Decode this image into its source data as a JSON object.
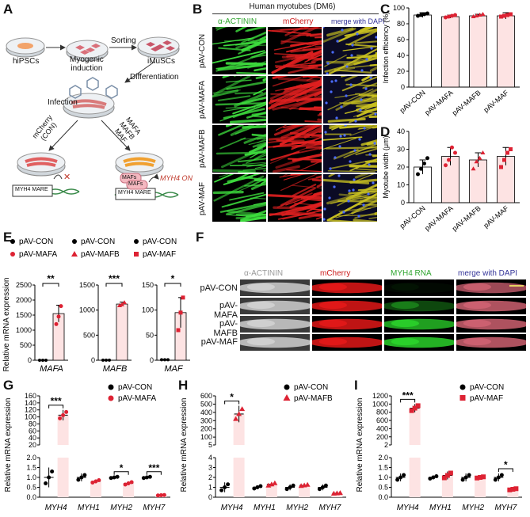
{
  "panels": {
    "A": {
      "letter": "A",
      "labels": {
        "hipsc": "hiPSCs",
        "myogenic": "Myogenic\ninduction",
        "sorting": "Sorting",
        "imuscs": "iMuSCs",
        "differentiation": "Differentiation",
        "infection": "Infection",
        "mcherry_con": "mCherry\n(CON)",
        "mafs_list": "MAFA\nMAFB\nMAF",
        "myh4_mare": "MYH4 MARE",
        "mafs": "MAFs",
        "myh4_on": "MYH4 ON"
      }
    },
    "B": {
      "letter": "B",
      "title": "Human myotubes (DM6)",
      "columns": [
        "α-ACTININ",
        "mCherry",
        "merge with DAPI"
      ],
      "column_colors": [
        "#2fa52f",
        "#cc1a1a",
        "#333399"
      ],
      "rows": [
        "pAV-CON",
        "pAV-MAFA",
        "pAV-MAFB",
        "pAV-MAF"
      ]
    },
    "C": {
      "letter": "C",
      "chart_data": {
        "type": "bar",
        "categories": [
          "pAV-CON",
          "pAV-MAFA",
          "pAV-MAFB",
          "pAV-MAF"
        ],
        "values": [
          91,
          89,
          90,
          90
        ],
        "errors": [
          3,
          2,
          2,
          4
        ],
        "ylabel": "Infection efficiency (%)",
        "ylim": [
          0,
          100
        ],
        "yticks": [
          0,
          20,
          40,
          60,
          80,
          100
        ]
      }
    },
    "D": {
      "letter": "D",
      "chart_data": {
        "type": "bar",
        "categories": [
          "pAV-CON",
          "pAV-MAFA",
          "pAV-MAFB",
          "pAV-MAF"
        ],
        "values": [
          20,
          26,
          24,
          26
        ],
        "errors": [
          4,
          5,
          4,
          5
        ],
        "points": [
          [
            16,
            19,
            22,
            25
          ],
          [
            21,
            24,
            31,
            28
          ],
          [
            19,
            23,
            25,
            28
          ],
          [
            20,
            24,
            28,
            30
          ]
        ],
        "ylabel": "Myotube width (μm)",
        "ylim": [
          0,
          40
        ],
        "yticks": [
          0,
          10,
          20,
          30,
          40
        ]
      }
    },
    "E": {
      "letter": "E",
      "ylabel": "Relative mRNA expression",
      "legends": [
        [
          "pAV-CON",
          "pAV-MAFA"
        ],
        [
          "pAV-CON",
          "pAV-MAFB"
        ],
        [
          "pAV-CON",
          "pAV-MAF"
        ]
      ],
      "chart_data": [
        {
          "type": "bar",
          "gene": "MAFA",
          "categories": [
            "pAV-CON",
            "pAV-MAFA"
          ],
          "values": [
            1,
            1550
          ],
          "errors": [
            0,
            280
          ],
          "points": [
            [
              1,
              1,
              1
            ],
            [
              1200,
              1450,
              1800
            ]
          ],
          "ylim": [
            0,
            2500
          ],
          "yticks": [
            0,
            500,
            1000,
            1500,
            2000,
            2500
          ],
          "sig": "**"
        },
        {
          "type": "bar",
          "gene": "MAFB",
          "categories": [
            "pAV-CON",
            "pAV-MAFB"
          ],
          "values": [
            1,
            1120
          ],
          "errors": [
            0,
            40
          ],
          "points": [
            [
              1,
              1,
              1
            ],
            [
              1090,
              1110,
              1150
            ]
          ],
          "ylim": [
            0,
            1500
          ],
          "yticks": [
            0,
            500,
            1000,
            1500
          ],
          "sig": "***"
        },
        {
          "type": "bar",
          "gene": "MAF",
          "categories": [
            "pAV-CON",
            "pAV-MAF"
          ],
          "values": [
            1,
            95
          ],
          "errors": [
            0,
            30
          ],
          "points": [
            [
              1,
              1,
              1
            ],
            [
              60,
              95,
              125
            ]
          ],
          "ylim": [
            0,
            150
          ],
          "yticks": [
            0,
            50,
            100,
            150
          ],
          "sig": "*"
        }
      ]
    },
    "F": {
      "letter": "F",
      "columns": [
        "α-ACTININ",
        "mCherry",
        "MYH4 RNA",
        "merge with DAPI"
      ],
      "rows": [
        "pAV-CON",
        "pAV-MAFA",
        "pAV-MAFB",
        "pAV-MAF"
      ]
    },
    "G": {
      "letter": "G",
      "legend": [
        "pAV-CON",
        "pAV-MAFA"
      ],
      "chart_data": {
        "type": "bar",
        "categories": [
          "MYH4",
          "MYH1",
          "MYH2",
          "MYH7"
        ],
        "series": [
          {
            "name": "pAV-CON",
            "values": [
              1,
              1,
              1,
              1
            ],
            "errors": [
              0.5,
              0.2,
              0.05,
              0.05
            ]
          },
          {
            "name": "pAV-MAFA",
            "values": [
              105,
              0.8,
              0.7,
              0.1
            ],
            "errors": [
              15,
              0.1,
              0.1,
              0.02
            ]
          }
        ],
        "ylabel": "Relative mRNA expression",
        "yticks_upper": [
          20,
          40,
          60,
          80,
          100,
          120,
          140,
          160
        ],
        "yticks_lower": [
          0,
          0.5,
          1.0,
          1.5,
          2.0
        ],
        "sig": [
          "***",
          "",
          "*",
          "***"
        ]
      }
    },
    "H": {
      "letter": "H",
      "legend": [
        "pAV-CON",
        "pAV-MAFB"
      ],
      "chart_data": {
        "type": "bar",
        "categories": [
          "MYH4",
          "MYH1",
          "MYH2",
          "MYH7"
        ],
        "series": [
          {
            "name": "pAV-CON",
            "values": [
              1,
              1,
              1,
              1
            ],
            "errors": [
              0.5,
              0.2,
              0.3,
              0.3
            ]
          },
          {
            "name": "pAV-MAFB",
            "values": [
              380,
              1.3,
              1.2,
              0.4
            ],
            "errors": [
              100,
              0.2,
              0.1,
              0.05
            ]
          }
        ],
        "ylabel": "Relative mRNA expression",
        "yticks_upper": [
          5,
          100,
          200,
          300,
          400,
          500,
          600
        ],
        "yticks_lower": [
          0,
          1,
          2,
          3,
          4
        ],
        "sig": [
          "*",
          "",
          "",
          ""
        ]
      }
    },
    "I": {
      "letter": "I",
      "legend": [
        "pAV-CON",
        "pAV-MAF"
      ],
      "chart_data": {
        "type": "bar",
        "categories": [
          "MYH4",
          "MYH1",
          "MYH2",
          "MYH7"
        ],
        "series": [
          {
            "name": "pAV-CON",
            "values": [
              1,
              1,
              1,
              1
            ],
            "errors": [
              0.2,
              0.1,
              0.2,
              0.2
            ]
          },
          {
            "name": "pAV-MAF",
            "values": [
              900,
              1.1,
              1.0,
              0.4
            ],
            "errors": [
              100,
              0.2,
              0.05,
              0.05
            ]
          }
        ],
        "ylabel": "Relative mRNA expression",
        "yticks_upper": [
          2,
          200,
          400,
          600,
          800,
          1000,
          1200
        ],
        "yticks_lower": [
          0,
          0.5,
          1.0,
          1.5,
          2.0
        ],
        "sig": [
          "***",
          "",
          "",
          "*"
        ]
      }
    }
  }
}
